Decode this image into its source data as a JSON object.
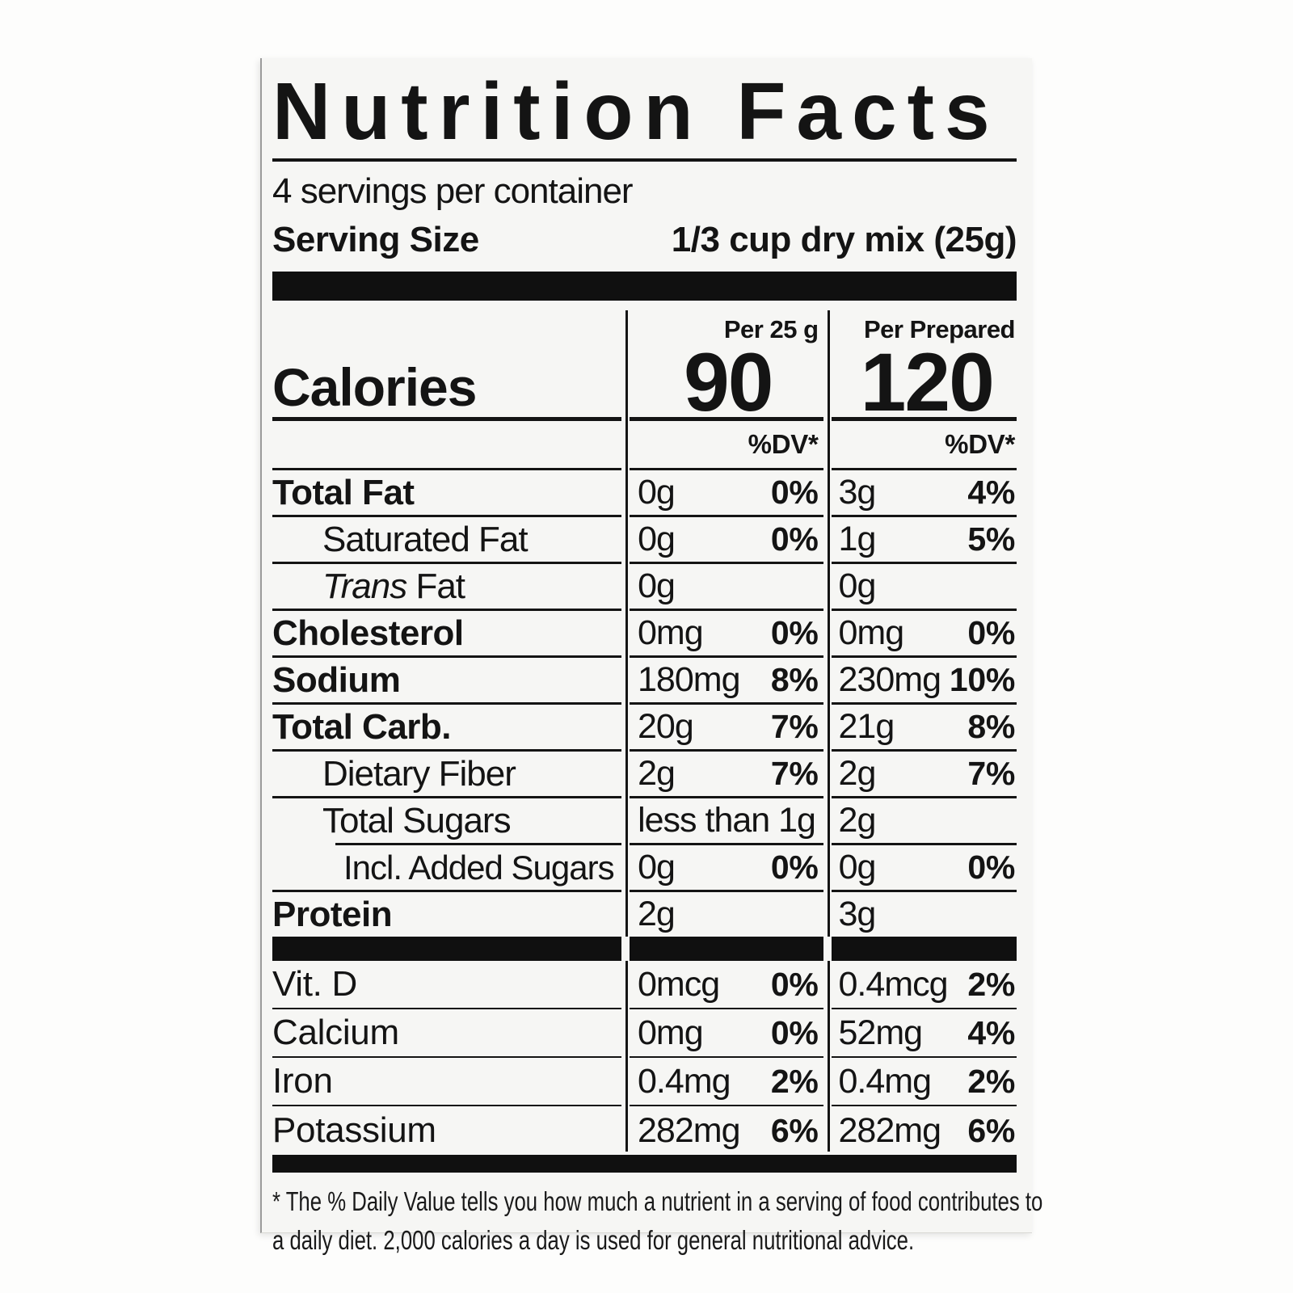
{
  "label": {
    "title": "Nutrition Facts",
    "servings_per_container": "4 servings per container",
    "serving_size": {
      "label": "Serving Size",
      "value": "1/3 cup dry mix (25g)"
    },
    "calories": {
      "label": "Calories",
      "col1_header": "Per 25 g",
      "col1_value": "90",
      "col2_header": "Per Prepared",
      "col2_value": "120",
      "dv_header_col1": "%DV*",
      "dv_header_col2": "%DV*"
    },
    "rows": [
      {
        "name": "Total Fat",
        "per25": "0g",
        "per25_dv": "0%",
        "prep": "3g",
        "prep_dv": "4%"
      },
      {
        "name": "Saturated Fat",
        "per25": "0g",
        "per25_dv": "0%",
        "prep": "1g",
        "prep_dv": "5%"
      },
      {
        "name_italic": "Trans",
        "name": " Fat",
        "per25": "0g",
        "per25_dv": "",
        "prep": "0g",
        "prep_dv": ""
      },
      {
        "name": "Cholesterol",
        "per25": "0mg",
        "per25_dv": "0%",
        "prep": "0mg",
        "prep_dv": "0%"
      },
      {
        "name": "Sodium",
        "per25": "180mg",
        "per25_dv": "8%",
        "prep": "230mg",
        "prep_dv": "10%"
      },
      {
        "name": "Total Carb.",
        "per25": "20g",
        "per25_dv": "7%",
        "prep": "21g",
        "prep_dv": "8%"
      },
      {
        "name": "Dietary Fiber",
        "per25": "2g",
        "per25_dv": "7%",
        "prep": "2g",
        "prep_dv": "7%"
      },
      {
        "name": "Total Sugars",
        "per25": "less than 1g",
        "per25_dv": "",
        "prep": "2g",
        "prep_dv": ""
      },
      {
        "name": "Incl. Added Sugars",
        "per25": "0g",
        "per25_dv": "0%",
        "prep": "0g",
        "prep_dv": "0%"
      },
      {
        "name": "Protein",
        "per25": "2g",
        "per25_dv": "",
        "prep": "3g",
        "prep_dv": ""
      }
    ],
    "micronutrients": [
      {
        "name": "Vit. D",
        "per25": "0mcg",
        "per25_dv": "0%",
        "prep": "0.4mcg",
        "prep_dv": "2%"
      },
      {
        "name": "Calcium",
        "per25": "0mg",
        "per25_dv": "0%",
        "prep": "52mg",
        "prep_dv": "4%"
      },
      {
        "name": "Iron",
        "per25": "0.4mg",
        "per25_dv": "2%",
        "prep": "0.4mg",
        "prep_dv": "2%"
      },
      {
        "name": "Potassium",
        "per25": "282mg",
        "per25_dv": "6%",
        "prep": "282mg",
        "prep_dv": "6%"
      }
    ],
    "footnote_line1": "* The % Daily Value tells you how much a nutrient in  a serving of food contributes to",
    "footnote_line2": "a daily diet. 2,000 calories a day is used for general nutritional advice.",
    "colors": {
      "ink": "#141414",
      "label_background": "#f6f6f4"
    }
  }
}
